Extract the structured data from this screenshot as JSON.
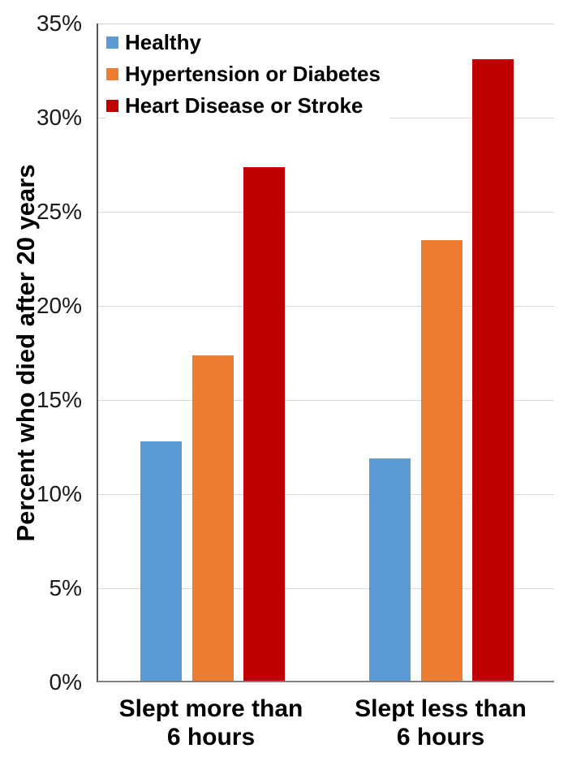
{
  "chart_data": {
    "type": "bar",
    "title": "",
    "xlabel": "",
    "ylabel": "Percent who died after 20 years",
    "ylim": [
      0,
      35
    ],
    "ytick_step": 5,
    "yticks": [
      "0%",
      "5%",
      "10%",
      "15%",
      "20%",
      "25%",
      "30%",
      "35%"
    ],
    "grid": true,
    "legend_position": "top-left-inside",
    "categories": [
      "Slept more than\n6 hours",
      "Slept less than\n6 hours"
    ],
    "series": [
      {
        "name": "Healthy",
        "color": "#5B9BD5",
        "values": [
          12.7,
          11.8
        ]
      },
      {
        "name": "Hypertension or Diabetes",
        "color": "#ED7D31",
        "values": [
          17.3,
          23.4
        ]
      },
      {
        "name": "Heart Disease or Stroke",
        "color": "#C00000",
        "values": [
          27.3,
          33.0
        ]
      }
    ]
  },
  "colors": {
    "background": "#FFFFFF",
    "gridline": "#D9D9D9",
    "axis_left": "#595959",
    "axis_bottom": "#808080",
    "tick_text": "#1A1A1A",
    "label_text": "#000000"
  }
}
